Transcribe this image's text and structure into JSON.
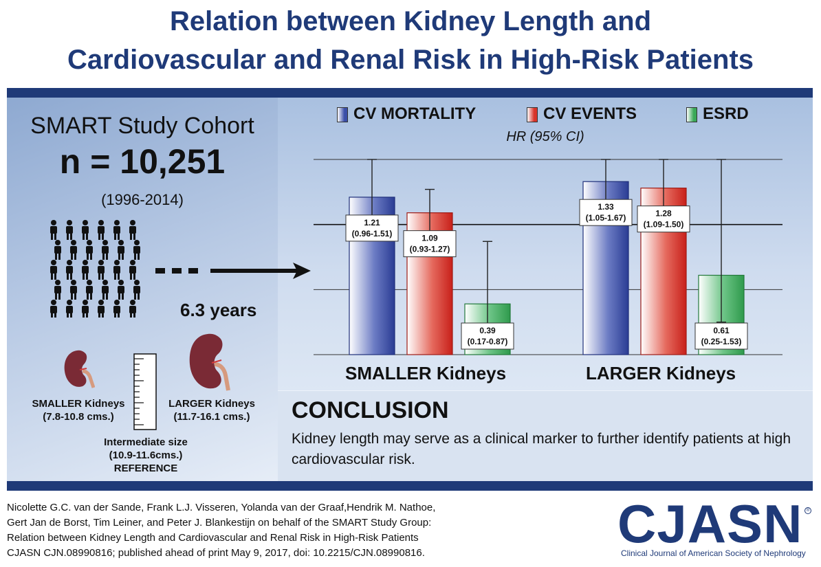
{
  "title": {
    "line1": "Relation between Kidney Length and",
    "line2": "Cardiovascular and Renal Risk in High-Risk Patients"
  },
  "cohort": {
    "name": "SMART Study Cohort",
    "n": "n = 10,251",
    "years": "(1996-2014)",
    "followup": "6.3 years"
  },
  "kidneys": {
    "smaller_label": "SMALLER Kidneys",
    "smaller_range": "(7.8-10.8 cms.)",
    "larger_label": "LARGER Kidneys",
    "larger_range": "(11.7-16.1 cms.)",
    "intermediate_line1": "Intermediate size",
    "intermediate_line2": "(10.9-11.6cms.)",
    "intermediate_line3": "REFERENCE"
  },
  "colors": {
    "navy": "#1f3a78",
    "cv_mortality": "#3b4fa8",
    "cv_events": "#d8332a",
    "esrd": "#3aa858",
    "kidney": "#7a2a35"
  },
  "chart_data": {
    "type": "bar",
    "subtitle": "HR (95% CI)",
    "categories": [
      "SMALLER Kidneys",
      "LARGER Kidneys"
    ],
    "series": [
      {
        "name": "CV MORTALITY",
        "values": [
          1.21,
          1.33
        ],
        "ci": [
          "0.96-1.51",
          "1.05-1.67"
        ]
      },
      {
        "name": "CV EVENTS",
        "values": [
          1.09,
          1.28
        ],
        "ci": [
          "0.93-1.27",
          "1.09-1.50"
        ]
      },
      {
        "name": "ESRD",
        "values": [
          0.39,
          0.61
        ],
        "ci": [
          "0.17-0.87",
          "0.25-1.53"
        ]
      }
    ],
    "ylim": [
      0,
      1.5
    ],
    "gridlines": [
      0.5,
      1.0,
      1.5
    ],
    "grid": true,
    "legend": "top"
  },
  "conclusion": {
    "heading": "CONCLUSION",
    "text": "Kidney length may serve as a clinical marker to further identify patients at high cardiovascular risk."
  },
  "citation": {
    "line1": "Nicolette G.C. van der Sande, Frank L.J. Visseren, Yolanda van der Graaf,Hendrik M. Nathoe,",
    "line2": "Gert Jan de Borst, Tim Leiner, and Peter J. Blankestijn on behalf of the SMART Study Group:",
    "line3": "Relation between Kidney Length and Cardiovascular and Renal Risk in High-Risk Patients",
    "line4": "CJASN CJN.08990816; published ahead of print May 9, 2017, doi: 10.2215/CJN.08990816."
  },
  "logo": {
    "text": "CJASN",
    "subtitle": "Clinical Journal of American Society of Nephrology",
    "registered": "®"
  }
}
